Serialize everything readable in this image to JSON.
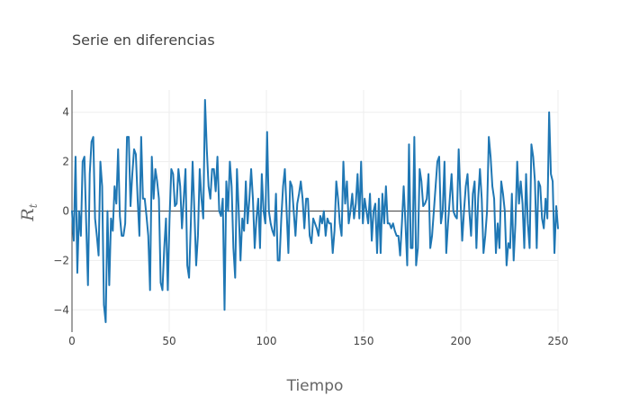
{
  "chart_data": {
    "type": "line",
    "title": "Serie en diferencias",
    "xlabel": "Tiempo",
    "ylabel": "R",
    "ylabel_subscript": "t",
    "xlim": [
      0,
      250
    ],
    "ylim": [
      -4.9,
      4.9
    ],
    "xticks": [
      0,
      50,
      100,
      150,
      200,
      250
    ],
    "yticks": [
      -4,
      -2,
      0,
      2,
      4
    ],
    "grid": true,
    "line_color": "#1f77b4",
    "series": [
      {
        "values": [
          0.0,
          -1.2,
          2.2,
          -2.5,
          0.0,
          -1.0,
          2.0,
          2.2,
          -0.5,
          -3.0,
          1.5,
          2.8,
          3.0,
          -0.3,
          -1.0,
          -1.8,
          2.0,
          1.0,
          -3.8,
          -4.5,
          0.0,
          -3.0,
          -0.3,
          -0.8,
          1.0,
          0.3,
          2.5,
          -0.2,
          -1.0,
          -1.0,
          -0.5,
          3.0,
          3.0,
          0.2,
          1.5,
          2.5,
          2.3,
          0.5,
          -1.0,
          3.0,
          0.5,
          0.5,
          -0.2,
          -1.0,
          -3.2,
          2.2,
          0.5,
          1.7,
          1.2,
          0.5,
          -2.9,
          -3.2,
          -1.5,
          -0.3,
          -3.2,
          -0.3,
          1.7,
          1.5,
          0.2,
          0.3,
          1.7,
          1.0,
          -0.7,
          0.5,
          1.7,
          -2.2,
          -2.7,
          -0.5,
          2.0,
          0.0,
          -2.2,
          -1.0,
          1.7,
          0.5,
          -0.3,
          4.5,
          2.5,
          1.0,
          0.5,
          1.7,
          1.7,
          0.8,
          2.2,
          0.0,
          -0.2,
          0.5,
          -4.0,
          1.2,
          0.0,
          2.0,
          1.0,
          -1.5,
          -2.7,
          1.7,
          0.0,
          -2.0,
          -0.3,
          -0.8,
          1.2,
          -0.5,
          0.5,
          1.7,
          0.5,
          -1.5,
          -0.3,
          0.5,
          -1.5,
          1.5,
          0.0,
          -0.5,
          3.2,
          0.0,
          -0.5,
          -0.8,
          -1.0,
          0.7,
          -2.0,
          -2.0,
          -0.3,
          1.0,
          1.7,
          0.0,
          -1.7,
          1.2,
          1.0,
          0.0,
          -1.0,
          0.3,
          0.7,
          1.2,
          0.5,
          -0.7,
          0.5,
          0.5,
          -1.0,
          -1.3,
          -0.3,
          -0.5,
          -0.7,
          -1.0,
          -0.2,
          -0.5,
          0.0,
          -1.0,
          -0.3,
          -0.5,
          -0.5,
          -1.7,
          -0.8,
          1.2,
          0.5,
          -0.5,
          -1.0,
          2.0,
          0.3,
          1.2,
          -0.5,
          0.0,
          0.7,
          -0.3,
          0.3,
          1.5,
          -0.3,
          2.0,
          -0.5,
          0.5,
          0.0,
          -0.5,
          0.7,
          -1.2,
          0.0,
          0.3,
          -1.7,
          0.5,
          -1.7,
          0.7,
          -0.5,
          1.0,
          -0.5,
          -0.5,
          -0.7,
          -0.5,
          -0.8,
          -1.0,
          -1.0,
          -1.8,
          -0.5,
          1.0,
          -0.5,
          -2.2,
          2.7,
          -1.5,
          -1.5,
          3.0,
          -2.2,
          -1.5,
          1.7,
          1.2,
          0.2,
          0.3,
          0.5,
          1.5,
          -1.5,
          -1.0,
          0.0,
          1.0,
          2.0,
          2.2,
          -0.5,
          0.0,
          2.0,
          -1.7,
          -0.5,
          0.5,
          1.5,
          0.0,
          -0.2,
          -0.3,
          2.5,
          0.5,
          -1.2,
          0.0,
          1.0,
          1.5,
          0.0,
          -1.0,
          0.7,
          1.2,
          -1.5,
          0.5,
          1.7,
          0.5,
          -1.7,
          -1.0,
          0.0,
          3.0,
          2.2,
          1.0,
          0.5,
          -1.7,
          -0.5,
          -1.5,
          1.2,
          0.7,
          0.0,
          -2.2,
          -1.3,
          -1.5,
          0.7,
          -2.0,
          -0.5,
          2.0,
          0.3,
          1.2,
          0.3,
          -1.5,
          1.5,
          -0.5,
          -1.5,
          2.7,
          2.2,
          1.2,
          -1.5,
          1.2,
          1.0,
          -0.3,
          -0.7,
          0.5,
          -0.3,
          4.0,
          1.5,
          1.2,
          -1.7,
          0.2,
          -0.7
        ]
      }
    ]
  }
}
